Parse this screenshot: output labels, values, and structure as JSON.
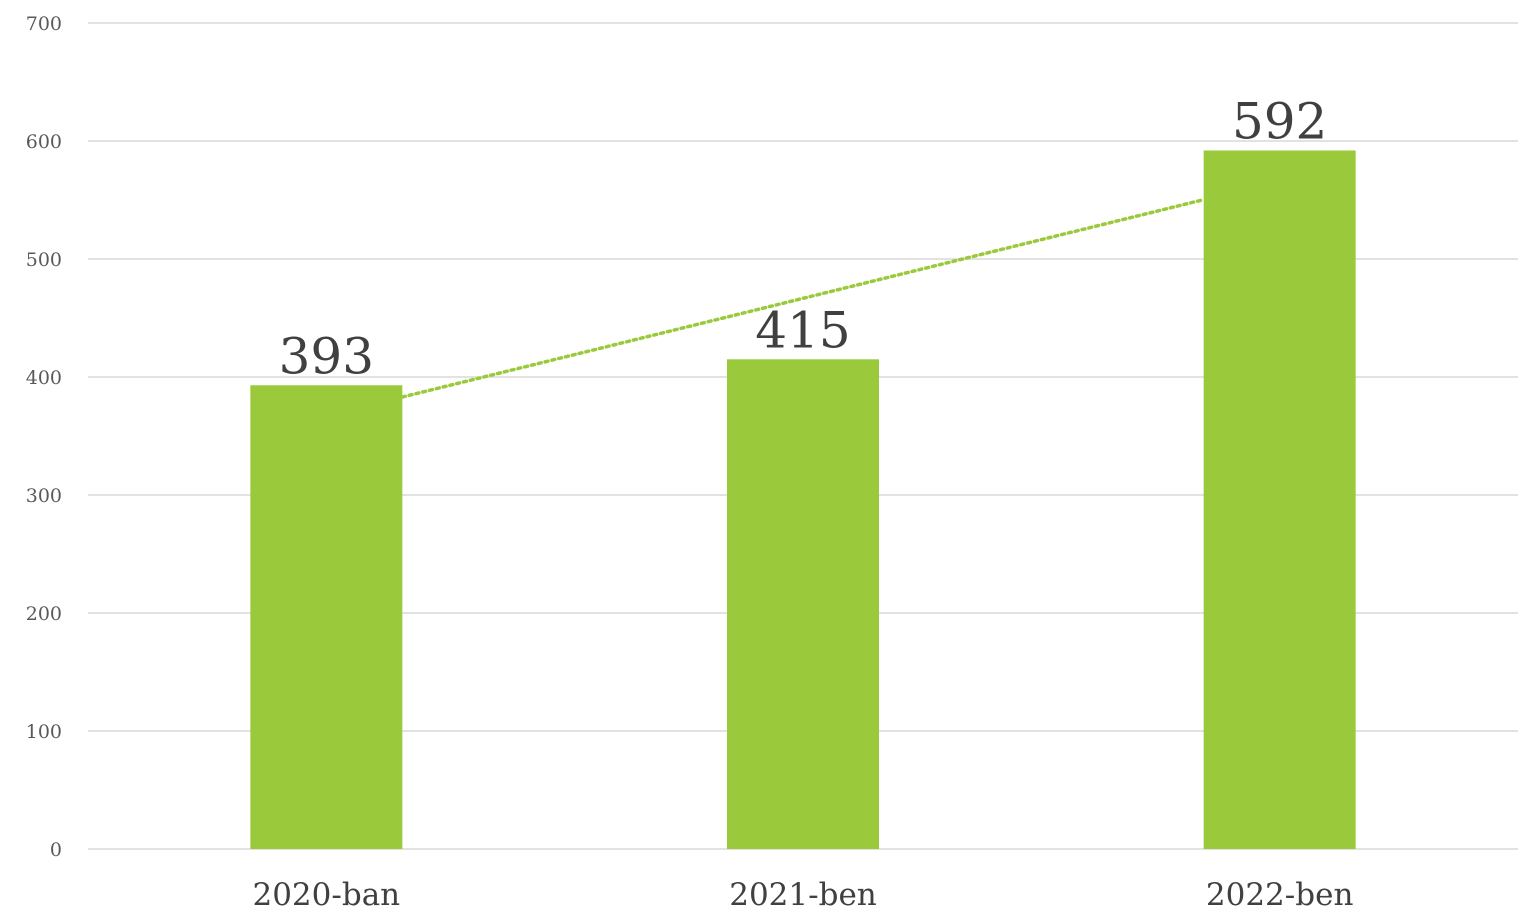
{
  "chart_data": {
    "type": "bar",
    "categories": [
      "2020-ban",
      "2021-ben",
      "2022-ben"
    ],
    "values": [
      393,
      415,
      592
    ],
    "data_labels": [
      "393",
      "415",
      "592"
    ],
    "y_ticks": [
      "0",
      "100",
      "200",
      "300",
      "400",
      "500",
      "600",
      "700"
    ],
    "ylim": [
      0,
      700
    ],
    "grid": true,
    "legend": "none",
    "trendline": {
      "type": "linear",
      "style": "dotted"
    },
    "colors": {
      "bar": "#9ACA3C",
      "trendline": "#9ACA3C",
      "grid": "#D9D9D9"
    }
  }
}
